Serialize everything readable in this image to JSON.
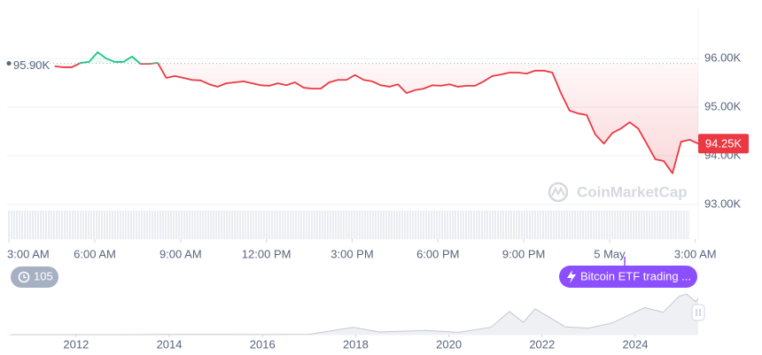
{
  "chart_data": [
    {
      "type": "line",
      "x": [
        96,
        114,
        132,
        150,
        168,
        186,
        204,
        222,
        240,
        258,
        276,
        294,
        312,
        330,
        348,
        366,
        384,
        402,
        420,
        438,
        456,
        474,
        492,
        510,
        528,
        546,
        564,
        582,
        600,
        618,
        636,
        654,
        672,
        690,
        708,
        726,
        744,
        762,
        780,
        798,
        816,
        834,
        852,
        870,
        888,
        906,
        924,
        942,
        960,
        978,
        996,
        1014,
        1032,
        1050,
        1068,
        1086,
        1104,
        1122,
        1140,
        1158,
        1176,
        1194,
        1212,
        1230,
        1248,
        1266,
        1284,
        1302,
        1320,
        1338,
        1356,
        1374,
        1392,
        1410,
        1428,
        1446
      ],
      "values": [
        95840,
        95820,
        95820,
        95910,
        95930,
        96130,
        96000,
        95930,
        95930,
        96040,
        95890,
        95890,
        95910,
        95600,
        95640,
        95600,
        95560,
        95550,
        95470,
        95420,
        95490,
        95510,
        95530,
        95490,
        95450,
        95440,
        95490,
        95450,
        95510,
        95400,
        95380,
        95380,
        95510,
        95560,
        95560,
        95660,
        95560,
        95530,
        95450,
        95420,
        95470,
        95290,
        95350,
        95380,
        95450,
        95440,
        95470,
        95420,
        95440,
        95440,
        95530,
        95640,
        95670,
        95710,
        95710,
        95690,
        95750,
        95750,
        95710,
        95290,
        94930,
        94870,
        94840,
        94440,
        94250,
        94470,
        94560,
        94690,
        94560,
        94250,
        93930,
        93890,
        93640,
        94290,
        94330,
        94250
      ],
      "color": "#ea3943",
      "up_color": "#16c784",
      "reference": {
        "value": 95900,
        "label": "95.90K"
      },
      "last_price": {
        "value": 94250,
        "label": "94.25K"
      },
      "xlim": [
        -4,
        1446
      ],
      "xticks": [
        {
          "value": 0,
          "label": "3:00 AM"
        },
        {
          "value": 180,
          "label": "6:00 AM"
        },
        {
          "value": 360,
          "label": "9:00 AM"
        },
        {
          "value": 540,
          "label": "12:00 PM"
        },
        {
          "value": 720,
          "label": "3:00 PM"
        },
        {
          "value": 900,
          "label": "6:00 PM"
        },
        {
          "value": 1080,
          "label": "9:00 PM"
        },
        {
          "value": 1260,
          "label": "5 May"
        },
        {
          "value": 1440,
          "label": "3:00 AM"
        }
      ],
      "ylim": [
        92290,
        97020
      ],
      "yticks": [
        {
          "value": 96000,
          "label": "96.00K"
        },
        {
          "value": 95000,
          "label": "95.00K"
        },
        {
          "value": 94000,
          "label": "94.00K"
        },
        {
          "value": 93000,
          "label": "93.00K"
        }
      ],
      "grid": true,
      "watermark": "CoinMarketCap",
      "event_count": 105,
      "event_label": "Bitcoin ETF trading ..."
    },
    {
      "type": "area",
      "x": [
        2010.6,
        2013,
        2014,
        2016,
        2017,
        2017.95,
        2018.5,
        2019.5,
        2020.2,
        2020.9,
        2021.3,
        2021.6,
        2021.85,
        2022.5,
        2023,
        2023.5,
        2024.2,
        2024.6,
        2024.95,
        2025.1,
        2025.3,
        2025.35
      ],
      "values": [
        0,
        100,
        500,
        400,
        1000,
        19000,
        7000,
        11000,
        6000,
        19000,
        60000,
        32000,
        67000,
        20000,
        17000,
        30000,
        70000,
        58000,
        100000,
        105000,
        85000,
        95000
      ],
      "color": "#c3c9d3",
      "xlim": [
        2010.52,
        2025.35
      ],
      "xticks": [
        2012,
        2014,
        2016,
        2018,
        2020,
        2022,
        2024
      ],
      "ylim": [
        0,
        110000
      ]
    }
  ]
}
